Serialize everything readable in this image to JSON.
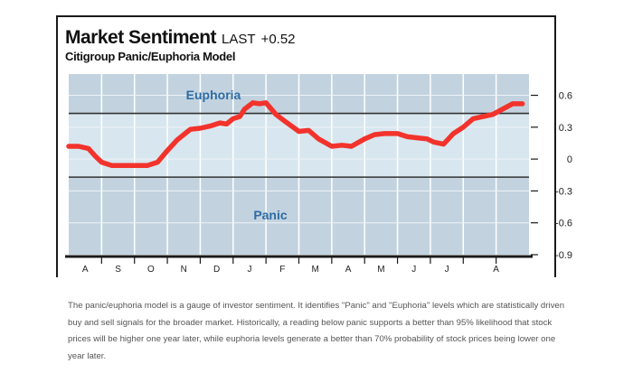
{
  "chart_data": {
    "type": "line",
    "title": "Market Sentiment",
    "last_label": "LAST",
    "last_value": "+0.52",
    "subtitle": "Citigroup Panic/Euphoria Model",
    "xlabel": "",
    "ylabel": "",
    "ylim": [
      -0.9,
      0.8
    ],
    "yticks": [
      0.6,
      0.3,
      0,
      -0.3,
      -0.6,
      -0.9
    ],
    "ytick_labels": [
      "0.6",
      "0.3",
      "0",
      "-0.3",
      "-0.6",
      "-0.9"
    ],
    "months": [
      "A",
      "S",
      "O",
      "N",
      "D",
      "J",
      "F",
      "M",
      "A",
      "M",
      "J",
      "J",
      "A"
    ],
    "euphoria_level": 0.43,
    "panic_level": -0.17,
    "zone_labels": {
      "euphoria": "Euphoria",
      "panic": "Panic"
    },
    "series": [
      {
        "name": "Panic/Euphoria Model",
        "color": "#f2332c",
        "x": [
          0,
          0.3,
          0.6,
          0.8,
          1.0,
          1.3,
          1.6,
          2.0,
          2.4,
          2.7,
          3.0,
          3.3,
          3.7,
          4.0,
          4.3,
          4.6,
          4.8,
          5.0,
          5.2,
          5.35,
          5.6,
          5.8,
          6.0,
          6.3,
          6.6,
          7.0,
          7.3,
          7.6,
          8.0,
          8.3,
          8.6,
          9.0,
          9.3,
          9.6,
          10.0,
          10.3,
          10.6,
          10.9,
          11.1,
          11.4,
          11.7,
          12.0,
          12.3,
          12.6
        ],
        "values": [
          0.12,
          0.12,
          0.1,
          0.03,
          -0.03,
          -0.06,
          -0.06,
          -0.06,
          -0.06,
          -0.03,
          0.08,
          0.18,
          0.28,
          0.29,
          0.31,
          0.34,
          0.33,
          0.38,
          0.4,
          0.47,
          0.53,
          0.52,
          0.53,
          0.42,
          0.35,
          0.26,
          0.27,
          0.19,
          0.12,
          0.13,
          0.12,
          0.19,
          0.23,
          0.24,
          0.24,
          0.21,
          0.2,
          0.19,
          0.16,
          0.14,
          0.24,
          0.3,
          0.38,
          0.4
        ]
      }
    ],
    "series_tail": {
      "x": [
        12.9,
        13.2,
        13.5,
        13.8
      ],
      "values": [
        0.42,
        0.47,
        0.52,
        0.52
      ]
    },
    "colors": {
      "band_dark": "#c2d3df",
      "band_light": "#d8e6ef",
      "line": "#f2332c",
      "zone_text": "#2f6ba3",
      "rule": "#333333",
      "axis": "#1a1a1a"
    }
  },
  "caption": "The panic/euphoria model is a gauge of investor sentiment. It identifies \"Panic\" and \"Euphoria\" levels which are statistically driven buy and sell signals for the broader market.  Historically, a reading below panic supports a better than 95% likelihood that stock prices will be higher one year later, while euphoria levels generate a better than 70% probability of stock prices being lower one year later."
}
